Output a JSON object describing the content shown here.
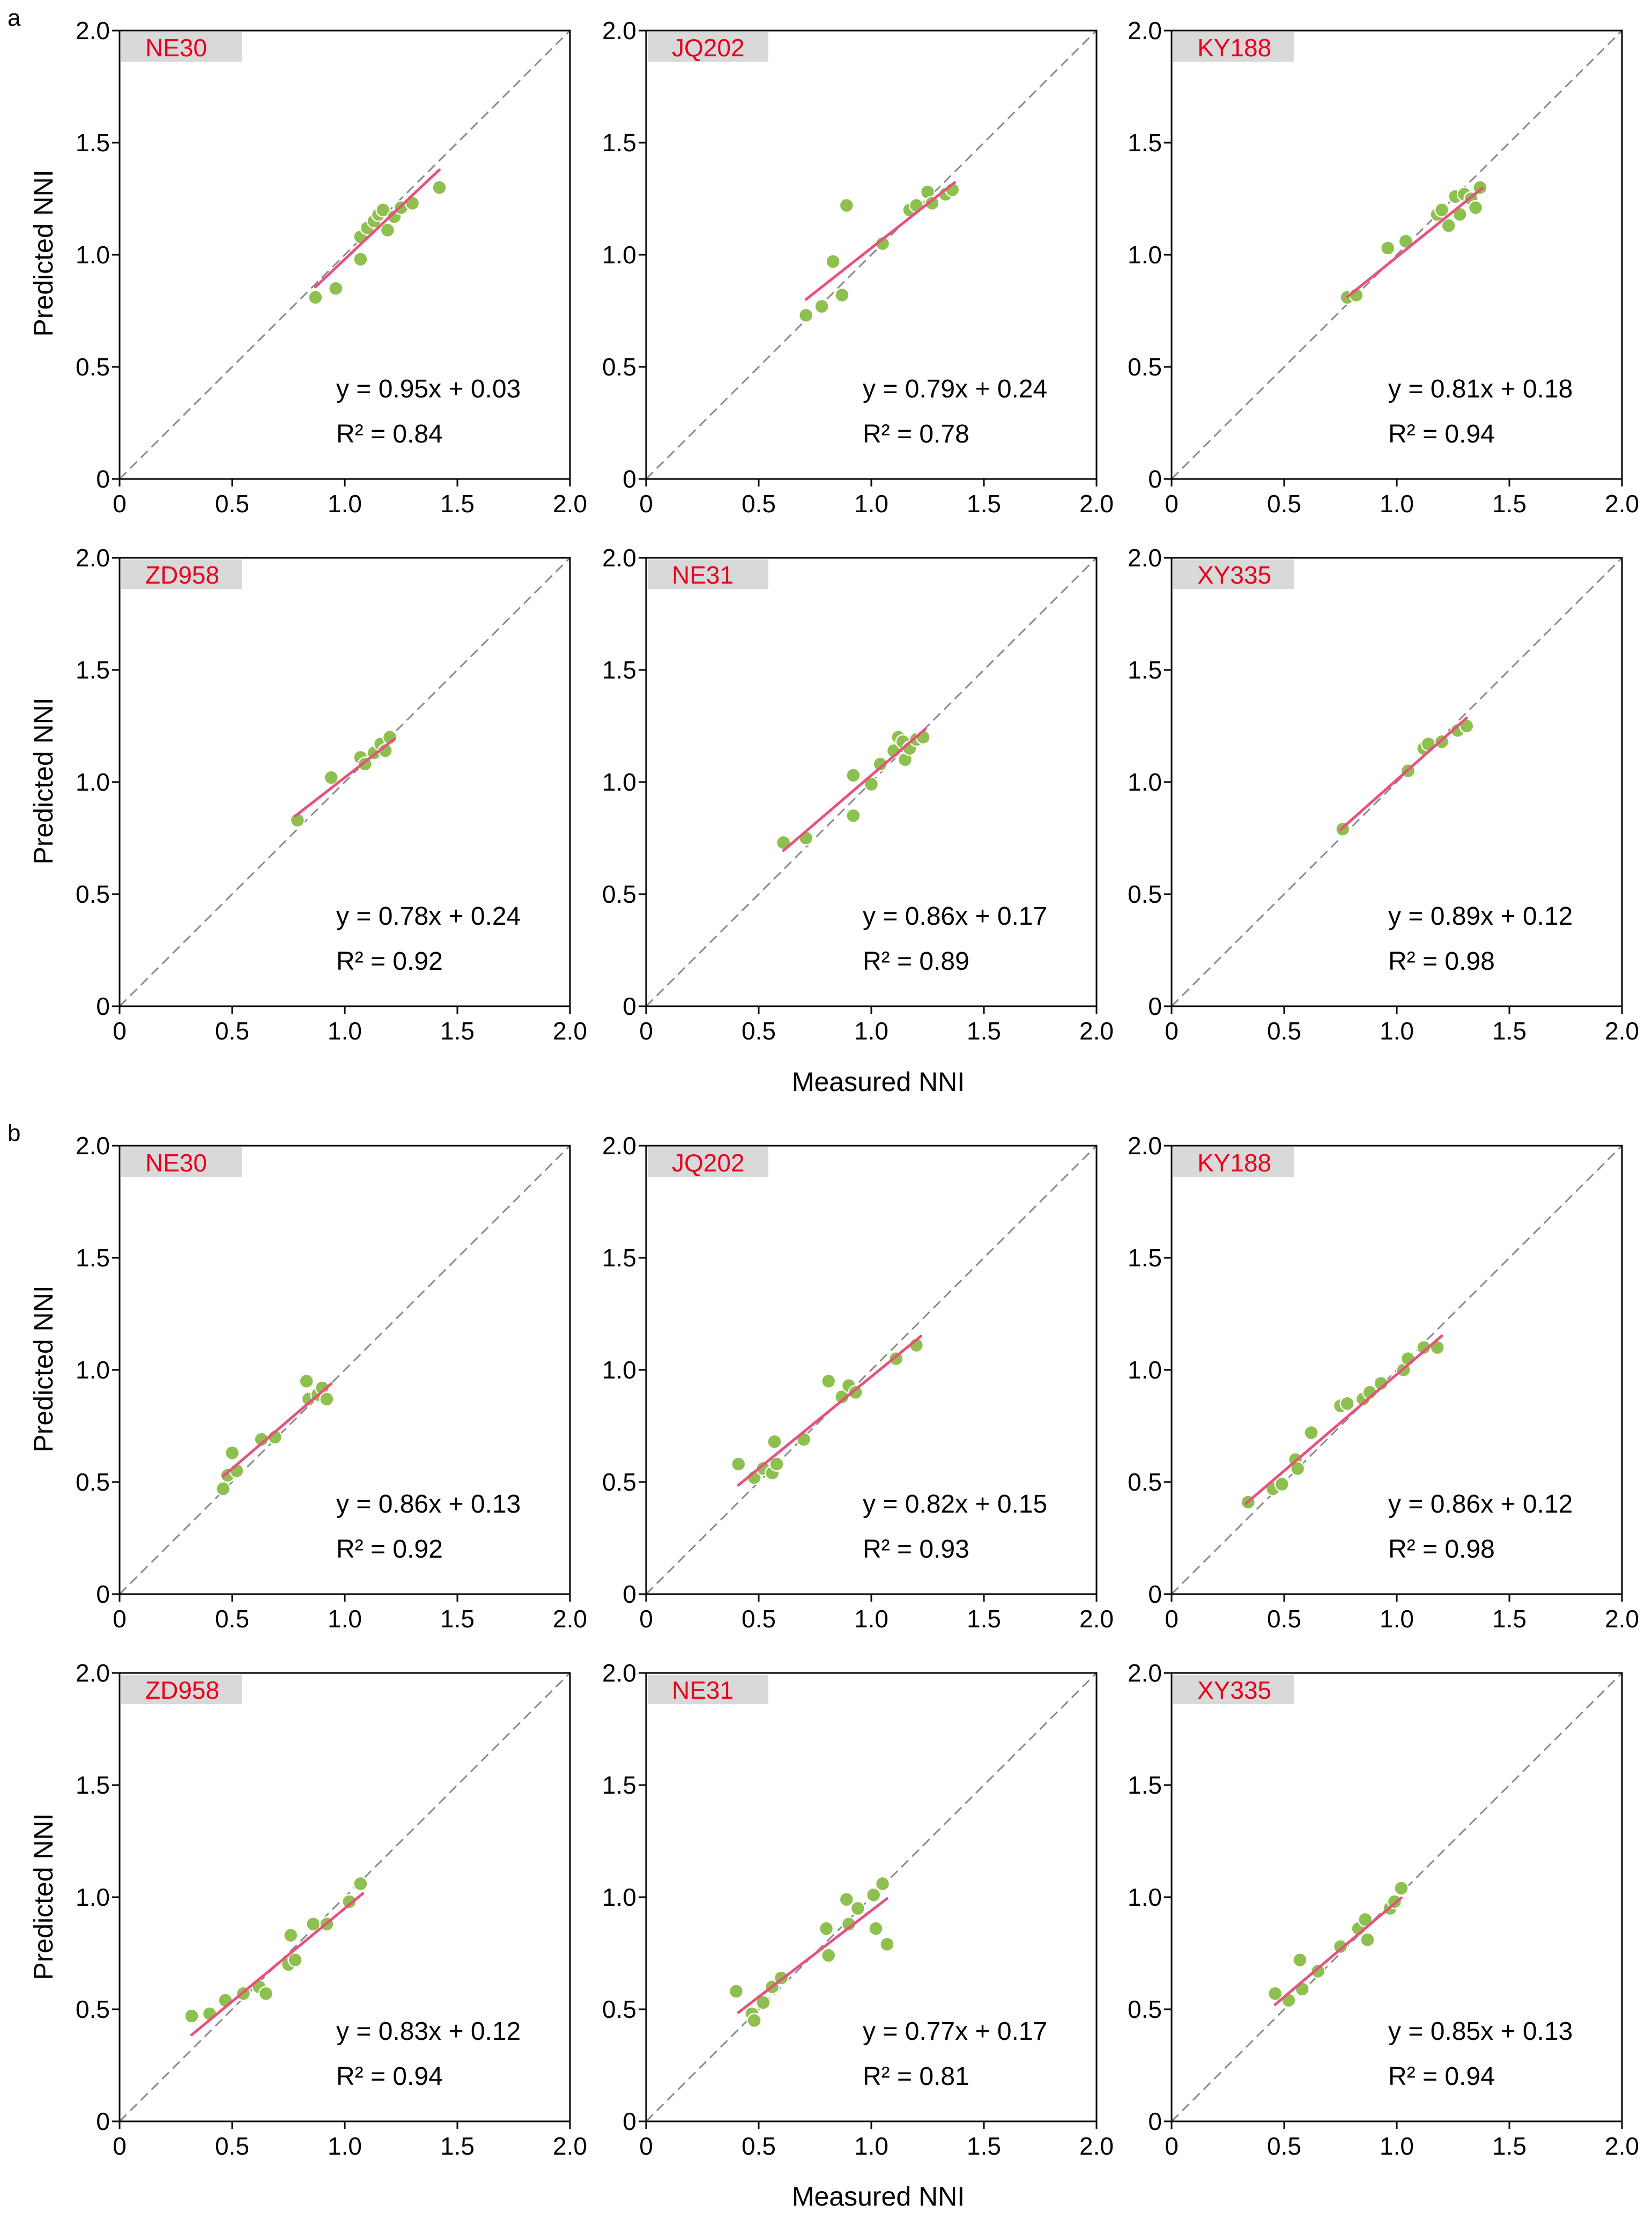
{
  "panel_labels": [
    "a",
    "b"
  ],
  "axis_labels": {
    "x": "Measured NNI",
    "y": "Predicted NNI"
  },
  "ticks": [
    "0",
    "0.5",
    "1.0",
    "1.5",
    "2.0"
  ],
  "colors": {
    "point": "#8dc04f",
    "fit_line": "#e8507f",
    "identity_line": "#8a8a8a",
    "label_bg": "#d9d9d9",
    "cultivar_text": "#e8001c",
    "axis": "#000000"
  },
  "chart_data": [
    {
      "type": "scatter",
      "group": "a",
      "cultivar": "NE30",
      "equation": "y = 0.95x + 0.03",
      "r2": "R² = 0.84",
      "xlim": [
        0,
        2
      ],
      "ylim": [
        0,
        2
      ],
      "fit": {
        "x0": 0.87,
        "x1": 1.42
      },
      "points": [
        [
          0.87,
          0.81
        ],
        [
          0.96,
          0.85
        ],
        [
          1.07,
          0.98
        ],
        [
          1.07,
          1.08
        ],
        [
          1.1,
          1.12
        ],
        [
          1.13,
          1.15
        ],
        [
          1.15,
          1.18
        ],
        [
          1.17,
          1.2
        ],
        [
          1.19,
          1.11
        ],
        [
          1.22,
          1.17
        ],
        [
          1.25,
          1.21
        ],
        [
          1.3,
          1.23
        ],
        [
          1.42,
          1.3
        ]
      ]
    },
    {
      "type": "scatter",
      "group": "a",
      "cultivar": "JQ202",
      "equation": "y = 0.79x + 0.24",
      "r2": "R² = 0.78",
      "xlim": [
        0,
        2
      ],
      "ylim": [
        0,
        2
      ],
      "fit": {
        "x0": 0.71,
        "x1": 1.37
      },
      "points": [
        [
          0.71,
          0.73
        ],
        [
          0.78,
          0.77
        ],
        [
          0.83,
          0.97
        ],
        [
          0.87,
          0.82
        ],
        [
          0.89,
          1.22
        ],
        [
          1.05,
          1.05
        ],
        [
          1.17,
          1.2
        ],
        [
          1.2,
          1.22
        ],
        [
          1.25,
          1.28
        ],
        [
          1.27,
          1.23
        ],
        [
          1.33,
          1.27
        ],
        [
          1.36,
          1.29
        ]
      ]
    },
    {
      "type": "scatter",
      "group": "a",
      "cultivar": "KY188",
      "equation": "y = 0.81x + 0.18",
      "r2": "R² = 0.94",
      "xlim": [
        0,
        2
      ],
      "ylim": [
        0,
        2
      ],
      "fit": {
        "x0": 0.78,
        "x1": 1.38
      },
      "points": [
        [
          0.78,
          0.81
        ],
        [
          0.82,
          0.82
        ],
        [
          0.96,
          1.03
        ],
        [
          1.04,
          1.06
        ],
        [
          1.18,
          1.18
        ],
        [
          1.2,
          1.2
        ],
        [
          1.23,
          1.13
        ],
        [
          1.26,
          1.26
        ],
        [
          1.28,
          1.18
        ],
        [
          1.3,
          1.27
        ],
        [
          1.33,
          1.25
        ],
        [
          1.35,
          1.21
        ],
        [
          1.37,
          1.3
        ]
      ]
    },
    {
      "type": "scatter",
      "group": "a",
      "cultivar": "ZD958",
      "equation": "y = 0.78x + 0.24",
      "r2": "R² = 0.92",
      "xlim": [
        0,
        2
      ],
      "ylim": [
        0,
        2
      ],
      "fit": {
        "x0": 0.78,
        "x1": 1.22
      },
      "points": [
        [
          0.79,
          0.83
        ],
        [
          0.94,
          1.02
        ],
        [
          1.07,
          1.11
        ],
        [
          1.09,
          1.08
        ],
        [
          1.13,
          1.13
        ],
        [
          1.16,
          1.17
        ],
        [
          1.18,
          1.14
        ],
        [
          1.2,
          1.2
        ]
      ]
    },
    {
      "type": "scatter",
      "group": "a",
      "cultivar": "NE31",
      "equation": "y = 0.86x + 0.17",
      "r2": "R² = 0.89",
      "xlim": [
        0,
        2
      ],
      "ylim": [
        0,
        2
      ],
      "fit": {
        "x0": 0.61,
        "x1": 1.24
      },
      "points": [
        [
          0.61,
          0.73
        ],
        [
          0.71,
          0.75
        ],
        [
          0.92,
          0.85
        ],
        [
          0.92,
          1.03
        ],
        [
          1.0,
          0.99
        ],
        [
          1.04,
          1.08
        ],
        [
          1.1,
          1.14
        ],
        [
          1.12,
          1.2
        ],
        [
          1.14,
          1.18
        ],
        [
          1.15,
          1.1
        ],
        [
          1.17,
          1.15
        ],
        [
          1.2,
          1.19
        ],
        [
          1.23,
          1.2
        ]
      ]
    },
    {
      "type": "scatter",
      "group": "a",
      "cultivar": "XY335",
      "equation": "y = 0.89x + 0.12",
      "r2": "R² = 0.98",
      "xlim": [
        0,
        2
      ],
      "ylim": [
        0,
        2
      ],
      "fit": {
        "x0": 0.75,
        "x1": 1.31
      },
      "points": [
        [
          0.76,
          0.79
        ],
        [
          1.05,
          1.05
        ],
        [
          1.12,
          1.15
        ],
        [
          1.14,
          1.17
        ],
        [
          1.2,
          1.18
        ],
        [
          1.27,
          1.23
        ],
        [
          1.31,
          1.25
        ]
      ]
    },
    {
      "type": "scatter",
      "group": "b",
      "cultivar": "NE30",
      "equation": "y = 0.86x + 0.13",
      "r2": "R² = 0.92",
      "xlim": [
        0,
        2
      ],
      "ylim": [
        0,
        2
      ],
      "fit": {
        "x0": 0.46,
        "x1": 0.94
      },
      "points": [
        [
          0.46,
          0.47
        ],
        [
          0.48,
          0.53
        ],
        [
          0.5,
          0.63
        ],
        [
          0.52,
          0.55
        ],
        [
          0.63,
          0.69
        ],
        [
          0.69,
          0.7
        ],
        [
          0.83,
          0.95
        ],
        [
          0.84,
          0.87
        ],
        [
          0.88,
          0.89
        ],
        [
          0.9,
          0.92
        ],
        [
          0.92,
          0.87
        ]
      ]
    },
    {
      "type": "scatter",
      "group": "b",
      "cultivar": "JQ202",
      "equation": "y = 0.82x + 0.15",
      "r2": "R² = 0.93",
      "xlim": [
        0,
        2
      ],
      "ylim": [
        0,
        2
      ],
      "fit": {
        "x0": 0.41,
        "x1": 1.22
      },
      "points": [
        [
          0.41,
          0.58
        ],
        [
          0.48,
          0.52
        ],
        [
          0.52,
          0.56
        ],
        [
          0.56,
          0.54
        ],
        [
          0.57,
          0.68
        ],
        [
          0.58,
          0.58
        ],
        [
          0.7,
          0.69
        ],
        [
          0.81,
          0.95
        ],
        [
          0.87,
          0.88
        ],
        [
          0.9,
          0.93
        ],
        [
          0.93,
          0.9
        ],
        [
          1.11,
          1.05
        ],
        [
          1.2,
          1.11
        ]
      ]
    },
    {
      "type": "scatter",
      "group": "b",
      "cultivar": "KY188",
      "equation": "y = 0.86x + 0.12",
      "r2": "R² = 0.98",
      "xlim": [
        0,
        2
      ],
      "ylim": [
        0,
        2
      ],
      "fit": {
        "x0": 0.33,
        "x1": 1.2
      },
      "points": [
        [
          0.34,
          0.41
        ],
        [
          0.45,
          0.47
        ],
        [
          0.49,
          0.49
        ],
        [
          0.55,
          0.6
        ],
        [
          0.56,
          0.56
        ],
        [
          0.62,
          0.72
        ],
        [
          0.75,
          0.84
        ],
        [
          0.78,
          0.85
        ],
        [
          0.85,
          0.87
        ],
        [
          0.88,
          0.9
        ],
        [
          0.93,
          0.94
        ],
        [
          1.03,
          1.0
        ],
        [
          1.05,
          1.05
        ],
        [
          1.12,
          1.1
        ],
        [
          1.18,
          1.1
        ]
      ]
    },
    {
      "type": "scatter",
      "group": "b",
      "cultivar": "ZD958",
      "equation": "y = 0.83x + 0.12",
      "r2": "R² = 0.94",
      "xlim": [
        0,
        2
      ],
      "ylim": [
        0,
        2
      ],
      "fit": {
        "x0": 0.32,
        "x1": 1.08
      },
      "points": [
        [
          0.32,
          0.47
        ],
        [
          0.4,
          0.48
        ],
        [
          0.47,
          0.54
        ],
        [
          0.55,
          0.57
        ],
        [
          0.62,
          0.6
        ],
        [
          0.65,
          0.57
        ],
        [
          0.75,
          0.7
        ],
        [
          0.76,
          0.83
        ],
        [
          0.78,
          0.72
        ],
        [
          0.86,
          0.88
        ],
        [
          0.92,
          0.88
        ],
        [
          1.02,
          0.98
        ],
        [
          1.07,
          1.06
        ]
      ]
    },
    {
      "type": "scatter",
      "group": "b",
      "cultivar": "NE31",
      "equation": "y = 0.77x + 0.17",
      "r2": "R² = 0.81",
      "xlim": [
        0,
        2
      ],
      "ylim": [
        0,
        2
      ],
      "fit": {
        "x0": 0.41,
        "x1": 1.07
      },
      "points": [
        [
          0.4,
          0.58
        ],
        [
          0.47,
          0.48
        ],
        [
          0.48,
          0.45
        ],
        [
          0.52,
          0.53
        ],
        [
          0.56,
          0.6
        ],
        [
          0.6,
          0.64
        ],
        [
          0.8,
          0.86
        ],
        [
          0.81,
          0.74
        ],
        [
          0.89,
          0.99
        ],
        [
          0.9,
          0.88
        ],
        [
          0.94,
          0.95
        ],
        [
          1.01,
          1.01
        ],
        [
          1.02,
          0.86
        ],
        [
          1.05,
          1.06
        ],
        [
          1.07,
          0.79
        ]
      ]
    },
    {
      "type": "scatter",
      "group": "b",
      "cultivar": "XY335",
      "equation": "y = 0.85x + 0.13",
      "r2": "R² = 0.94",
      "xlim": [
        0,
        2
      ],
      "ylim": [
        0,
        2
      ],
      "fit": {
        "x0": 0.46,
        "x1": 1.02
      },
      "points": [
        [
          0.46,
          0.57
        ],
        [
          0.52,
          0.54
        ],
        [
          0.57,
          0.72
        ],
        [
          0.58,
          0.59
        ],
        [
          0.65,
          0.67
        ],
        [
          0.75,
          0.78
        ],
        [
          0.83,
          0.86
        ],
        [
          0.86,
          0.9
        ],
        [
          0.87,
          0.81
        ],
        [
          0.97,
          0.95
        ],
        [
          0.99,
          0.98
        ],
        [
          1.02,
          1.04
        ]
      ]
    }
  ]
}
